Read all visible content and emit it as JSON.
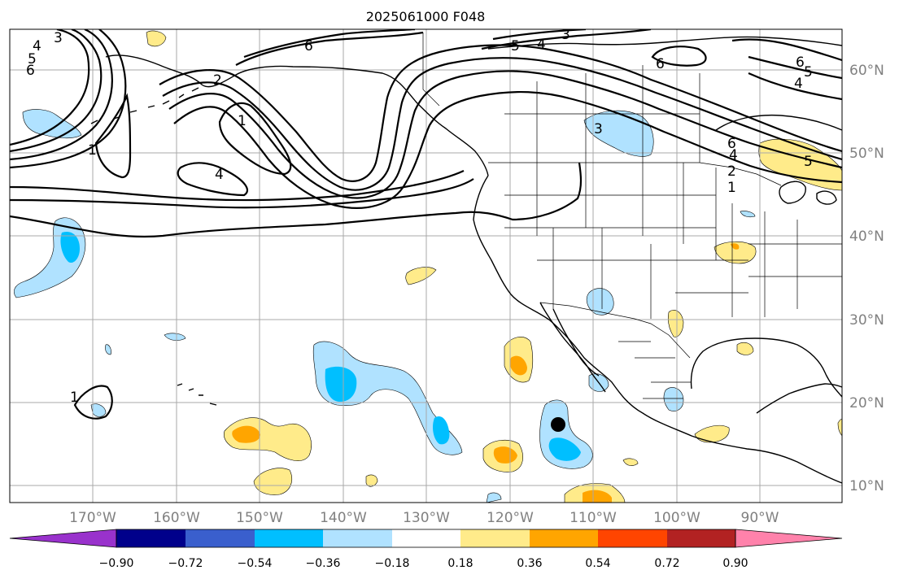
{
  "title": "2025061000 F048",
  "longitude_labels": [
    "170°W",
    "160°W",
    "150°W",
    "140°W",
    "130°W",
    "120°W",
    "110°W",
    "100°W",
    "90°W"
  ],
  "latitude_labels": [
    "60°N",
    "50°N",
    "40°N",
    "30°N",
    "20°N",
    "10°N"
  ],
  "colorbar": {
    "tick_labels": [
      "−0.90",
      "−0.72",
      "−0.54",
      "−0.36",
      "−0.18",
      "0.18",
      "0.36",
      "0.54",
      "0.72",
      "0.90"
    ],
    "colors": [
      "#9932cc",
      "#00008b",
      "#3a5fcd",
      "#00bfff",
      "#b0e2ff",
      "#ffffff",
      "#ffeb8a",
      "#ffa500",
      "#ff4500",
      "#b22222",
      "#ff82ab"
    ]
  },
  "contour_labels": [
    "6",
    "5",
    "4",
    "3",
    "2",
    "1",
    "6",
    "1",
    "4",
    "5",
    "4",
    "3",
    "6",
    "3",
    "6",
    "5",
    "4",
    "6",
    "4",
    "2",
    "1",
    "5",
    "1"
  ],
  "marker": "storm-center"
}
